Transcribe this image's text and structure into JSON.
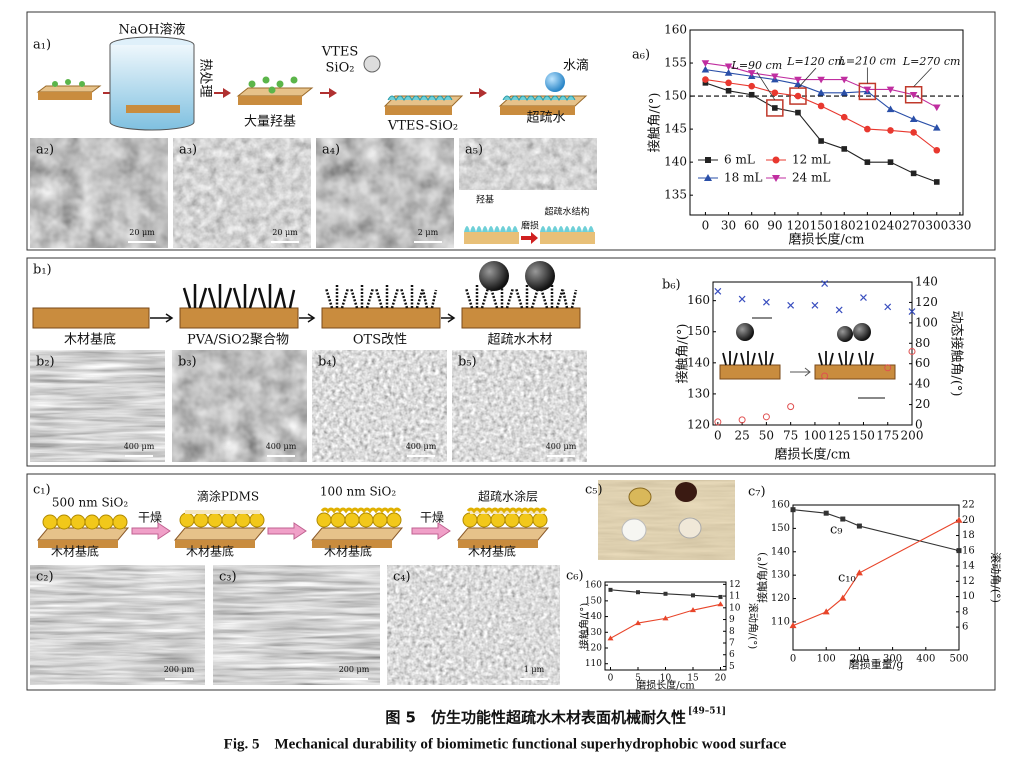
{
  "figure": {
    "a": {
      "label": "a₁)",
      "schematic": {
        "naoh": "NaOH溶液",
        "heat": "热处理",
        "hydroxyl": "大量羟基",
        "vtes": "VTES",
        "sio2": "SiO₂",
        "vtes_sio2": "VTES-SiO₂",
        "droplet": "水滴",
        "superhydrophobic": "超疏水"
      },
      "micrographs": [
        {
          "label": "a₂)",
          "scale": "20 μm"
        },
        {
          "label": "a₃)",
          "scale": "20 μm"
        },
        {
          "label": "a₄)",
          "scale": "2 μm"
        },
        {
          "label": "a₅)"
        }
      ],
      "inset": {
        "hydroxyl": "羟基",
        "abrasion": "磨损",
        "structure": "超疏水结构"
      }
    },
    "b": {
      "label": "b₁)",
      "steps": [
        "木材基底",
        "PVA/SiO2聚合物",
        "OTS改性",
        "超疏水木材"
      ],
      "micrographs": [
        {
          "label": "b₂)",
          "scale": "400 μm"
        },
        {
          "label": "b₃)",
          "scale": "400 μm"
        },
        {
          "label": "b₄)",
          "scale": "400 μm"
        },
        {
          "label": "b₅)",
          "scale": "400 μm"
        }
      ]
    },
    "c": {
      "label": "c₁)",
      "schematic": {
        "sio2_500": "500 nm SiO₂",
        "dry_1": "干燥",
        "pdms": "滴涂PDMS",
        "sio2_100": "100 nm SiO₂",
        "dry_2": "干燥",
        "coating": "超疏水涂层",
        "substrate": [
          "木材基底",
          "木材基底",
          "木材基底",
          "木材基底"
        ]
      },
      "micrographs": [
        {
          "label": "c₂)",
          "scale": "200 μm"
        },
        {
          "label": "c₃)",
          "scale": "200 μm"
        },
        {
          "label": "c₄)",
          "scale": "1 μm"
        }
      ],
      "photo_label": "c₅)"
    }
  },
  "chart_data": [
    {
      "type": "line",
      "label": "a₆)",
      "xlabel": "磨损长度/cm",
      "ylabel": "接触角/(°)",
      "x": [
        0,
        30,
        60,
        90,
        120,
        150,
        180,
        210,
        240,
        270,
        300
      ],
      "xlim": [
        -20,
        334
      ],
      "xticks": [
        0,
        30,
        60,
        90,
        120,
        150,
        180,
        210,
        240,
        270,
        300,
        330
      ],
      "ylim": [
        132,
        160
      ],
      "yticks": [
        135,
        140,
        145,
        150,
        155,
        160
      ],
      "hline": 150,
      "legend": "lower left",
      "series": [
        {
          "name": "6 mL",
          "color": "#222222",
          "marker": "s",
          "values": [
            152,
            150.8,
            150.2,
            148.2,
            147.5,
            143.2,
            142,
            140,
            140,
            138.3,
            137
          ]
        },
        {
          "name": "12 mL",
          "color": "#e8382f",
          "marker": "o",
          "values": [
            152.5,
            152,
            151.5,
            150.5,
            150,
            148.5,
            146.8,
            145,
            144.8,
            144.5,
            141.8
          ]
        },
        {
          "name": "18 mL",
          "color": "#2a4fa8",
          "marker": "^",
          "values": [
            154,
            153.5,
            153,
            152.5,
            151.8,
            150.5,
            150.5,
            150.7,
            148,
            146.5,
            145.2
          ]
        },
        {
          "name": "24 mL",
          "color": "#c02ea0",
          "marker": "v",
          "values": [
            155,
            154.5,
            153.5,
            153,
            152.5,
            152.5,
            152.5,
            151,
            151,
            150.2,
            148.3
          ]
        }
      ],
      "annotations": [
        {
          "text": "L=90 cm",
          "x": 90,
          "y": 148.2
        },
        {
          "text": "L=120 cm",
          "x": 120,
          "y": 150
        },
        {
          "text": "L=210 cm",
          "x": 210,
          "y": 150.7
        },
        {
          "text": "L=270 cm",
          "x": 270,
          "y": 150.2
        }
      ]
    },
    {
      "type": "scatter",
      "label": "b₆)",
      "xlabel": "磨损长度/cm",
      "ylabel": "接触角/(°)",
      "y2label": "动态接触角/(°)",
      "xlim": [
        -5,
        200
      ],
      "xticks": [
        0,
        25,
        50,
        75,
        100,
        125,
        150,
        175,
        200
      ],
      "ylim": [
        120,
        166
      ],
      "yticks": [
        120,
        130,
        140,
        150,
        160
      ],
      "y2lim": [
        0,
        140
      ],
      "y2ticks": [
        0,
        20,
        40,
        60,
        80,
        100,
        120,
        140
      ],
      "series": [
        {
          "color": "#3a4fbf",
          "marker": "x",
          "x": [
            0,
            25,
            50,
            75,
            100,
            110,
            125,
            150,
            175,
            200
          ],
          "values": [
            163,
            160.5,
            159.5,
            158.5,
            158.5,
            165.5,
            157,
            161,
            158,
            156.5
          ]
        },
        {
          "color": "#e05050",
          "marker": "circle-open",
          "axis": "y2",
          "x": [
            0,
            25,
            50,
            75,
            110,
            175,
            200
          ],
          "values": [
            3,
            5,
            8,
            18,
            48,
            56,
            72
          ]
        }
      ]
    },
    {
      "type": "line",
      "label": "c₆)",
      "xlabel": "磨损长度/cm",
      "ylabel": "接触角/(°)",
      "y2label": "滚动角/(°)",
      "x": [
        0,
        5,
        10,
        15,
        20
      ],
      "xlim": [
        -1,
        21
      ],
      "xticks": [
        0,
        5,
        10,
        15,
        20
      ],
      "ylim": [
        106,
        162
      ],
      "yticks": [
        110,
        120,
        130,
        140,
        150,
        160
      ],
      "y2lim": [
        4.7,
        12.2
      ],
      "y2ticks": [
        5,
        6,
        7,
        8,
        9,
        10,
        11,
        12
      ],
      "series": [
        {
          "color": "#333333",
          "marker": "s",
          "values": [
            157,
            155.5,
            154.5,
            153.5,
            152.5
          ]
        },
        {
          "color": "#e8452a",
          "marker": "^",
          "axis": "y2",
          "values": [
            7.4,
            8.7,
            9.1,
            9.8,
            10.3
          ]
        }
      ]
    },
    {
      "type": "line",
      "label": "c₇)",
      "xlabel": "磨损重量/g",
      "ylabel": "接触角/(°)",
      "y2label": "滚动角/(°)",
      "x": [
        0,
        100,
        150,
        200,
        500
      ],
      "xlim": [
        0,
        500
      ],
      "xticks": [
        0,
        100,
        200,
        300,
        400,
        500
      ],
      "ylim": [
        98,
        160
      ],
      "yticks": [
        110,
        120,
        130,
        140,
        150,
        160
      ],
      "y2lim": [
        3,
        22
      ],
      "y2ticks": [
        6,
        8,
        10,
        12,
        14,
        16,
        18,
        20,
        22
      ],
      "series": [
        {
          "color": "#333333",
          "marker": "s",
          "values": [
            158,
            156.5,
            154,
            151,
            140.5
          ]
        },
        {
          "color": "#e8452a",
          "marker": "^",
          "axis": "y2",
          "values": [
            6.2,
            8,
            9.8,
            13.1,
            20
          ]
        }
      ],
      "annotations": [
        {
          "text": "c₉"
        },
        {
          "text": "c₁₀"
        }
      ]
    }
  ],
  "caption": {
    "zh": "图 5　仿生功能性超疏水木材表面机械耐久性",
    "refs": "[49–51]",
    "en": "Fig. 5　Mechanical durability of biomimetic functional superhydrophobic wood surface"
  }
}
